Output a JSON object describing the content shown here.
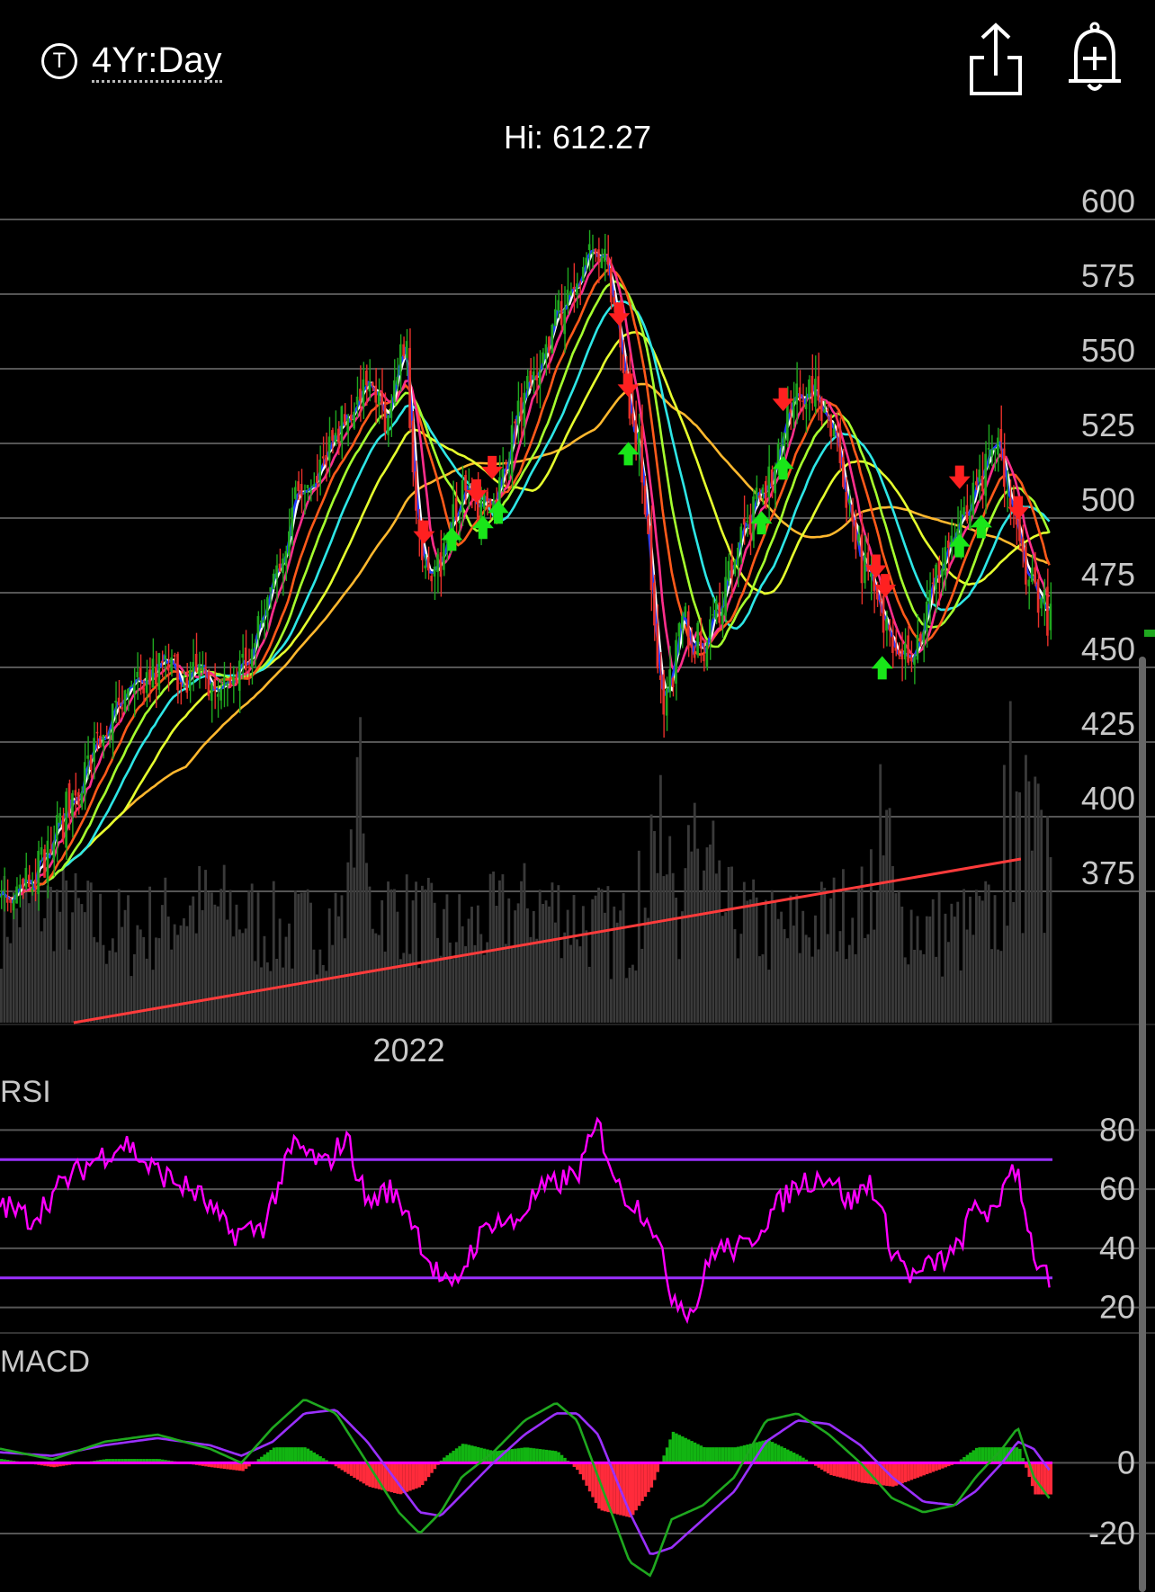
{
  "header": {
    "range_icon": "T",
    "range_label": "4Yr:Day",
    "share_icon": "share-icon",
    "alert_icon": "add-alert-bell-icon",
    "hi_label": "Hi: 612.27"
  },
  "colors": {
    "background": "#000000",
    "grid": "#555555",
    "up": "#1fa81f",
    "down": "#e8302a",
    "volume": "#3a3a3a",
    "trendline": "#ff3b3b",
    "rsi": "#ff00ff",
    "rsi_bands": "#9b30ff",
    "macd_line": "#1fa81f",
    "signal_line": "#9b30ff",
    "hist_up": "#12b512",
    "hist_down": "#ff2b3b"
  },
  "chart_data": [
    {
      "type": "candlestick",
      "title": "",
      "high_label": "Hi: 612.27",
      "y_ticks": [
        600,
        575,
        550,
        525,
        500,
        475,
        450,
        425,
        400,
        375
      ],
      "ylim": [
        360,
        612.27
      ],
      "x_tick_labels": [
        "2022"
      ],
      "x_tick_positions": [
        0.38
      ],
      "close_path": {
        "t": [
          0,
          0.04,
          0.1,
          0.15,
          0.18,
          0.21,
          0.24,
          0.28,
          0.32,
          0.345,
          0.37,
          0.385,
          0.4,
          0.42,
          0.44,
          0.465,
          0.49,
          0.52,
          0.54,
          0.56,
          0.575,
          0.59,
          0.61,
          0.63,
          0.65,
          0.67,
          0.7,
          0.73,
          0.76,
          0.79,
          0.82,
          0.84,
          0.87,
          0.9,
          0.92,
          0.95,
          0.97,
          1.0
        ],
        "close": [
          375,
          385,
          430,
          450,
          448,
          442,
          455,
          505,
          530,
          545,
          532,
          560,
          480,
          485,
          510,
          500,
          530,
          560,
          575,
          590,
          585,
          555,
          520,
          435,
          465,
          455,
          490,
          510,
          545,
          535,
          485,
          465,
          455,
          490,
          500,
          525,
          490,
          465
        ]
      },
      "moving_averages": [
        {
          "color": "#1f3bff",
          "smooth": 2
        },
        {
          "color": "#ffffff",
          "smooth": 3
        },
        {
          "color": "#ff2e8c",
          "smooth": 7
        },
        {
          "color": "#ff5a1a",
          "smooth": 14
        },
        {
          "color": "#a6ff2e",
          "smooth": 20
        },
        {
          "color": "#2ee6e6",
          "smooth": 28
        },
        {
          "color": "#e6ff2e",
          "smooth": 40
        },
        {
          "color": "#ffb82e",
          "smooth": 60
        }
      ],
      "buy_signals": [
        0.43,
        0.46,
        0.475,
        0.6,
        0.725,
        0.745,
        0.84,
        0.915,
        0.935
      ],
      "sell_signals": [
        0.405,
        0.455,
        0.47,
        0.59,
        0.6,
        0.745,
        0.835,
        0.845,
        0.915,
        0.97
      ],
      "volume": {
        "relative_range": [
          0.0,
          0.48
        ],
        "spikes": [
          0.34,
          0.63,
          0.84,
          0.97
        ]
      },
      "trendline": {
        "from": [
          0.07,
          0.0
        ],
        "to": [
          0.97,
          0.35
        ]
      }
    },
    {
      "type": "line",
      "title": "RSI",
      "y_ticks": [
        80,
        60,
        40,
        20
      ],
      "ylim": [
        12,
        88
      ],
      "bands": [
        70,
        30
      ],
      "series": [
        {
          "t": [
            0,
            0.03,
            0.06,
            0.09,
            0.12,
            0.14,
            0.16,
            0.19,
            0.22,
            0.25,
            0.28,
            0.31,
            0.33,
            0.35,
            0.37,
            0.39,
            0.41,
            0.43,
            0.45,
            0.47,
            0.49,
            0.51,
            0.53,
            0.55,
            0.57,
            0.59,
            0.62,
            0.64,
            0.66,
            0.68,
            0.71,
            0.73,
            0.76,
            0.79,
            0.81,
            0.83,
            0.85,
            0.87,
            0.89,
            0.91,
            0.93,
            0.95,
            0.96,
            0.97,
            0.985,
            1.0
          ],
          "value": [
            55,
            50,
            62,
            70,
            76,
            68,
            64,
            58,
            45,
            47,
            75,
            68,
            78,
            55,
            60,
            52,
            35,
            25,
            40,
            50,
            48,
            58,
            62,
            65,
            82,
            60,
            50,
            25,
            18,
            40,
            40,
            50,
            62,
            65,
            55,
            63,
            40,
            30,
            35,
            38,
            55,
            50,
            68,
            66,
            38,
            28
          ]
        }
      ]
    },
    {
      "type": "line",
      "title": "MACD",
      "y_ticks": [
        0,
        -20
      ],
      "ylim": [
        -34,
        22
      ],
      "series": [
        {
          "name": "",
          "t": [
            0,
            0.05,
            0.1,
            0.15,
            0.2,
            0.23,
            0.26,
            0.29,
            0.32,
            0.35,
            0.38,
            0.4,
            0.42,
            0.44,
            0.47,
            0.5,
            0.53,
            0.55,
            0.57,
            0.6,
            0.62,
            0.64,
            0.67,
            0.7,
            0.73,
            0.76,
            0.79,
            0.82,
            0.85,
            0.88,
            0.91,
            0.93,
            0.955,
            0.97,
            0.985,
            1.0
          ],
          "value": [
            4,
            1,
            6,
            8,
            4,
            0,
            10,
            18,
            14,
            0,
            -14,
            -20,
            -14,
            -4,
            3,
            12,
            17,
            12,
            -4,
            -28,
            -32,
            -16,
            -12,
            -4,
            12,
            14,
            8,
            0,
            -10,
            -14,
            -12,
            -4,
            4,
            10,
            -4,
            -10
          ]
        },
        {
          "name": "",
          "t": [
            0,
            0.05,
            0.1,
            0.15,
            0.2,
            0.23,
            0.26,
            0.29,
            0.32,
            0.35,
            0.38,
            0.4,
            0.42,
            0.44,
            0.47,
            0.5,
            0.53,
            0.55,
            0.57,
            0.6,
            0.62,
            0.64,
            0.67,
            0.7,
            0.73,
            0.76,
            0.79,
            0.82,
            0.85,
            0.88,
            0.91,
            0.93,
            0.955,
            0.97,
            0.985,
            1.0
          ],
          "value": [
            3,
            2,
            5,
            7,
            5,
            2,
            6,
            14,
            15,
            6,
            -6,
            -14,
            -15,
            -9,
            0,
            8,
            14,
            14,
            8,
            -14,
            -26,
            -24,
            -16,
            -8,
            6,
            12,
            11,
            5,
            -4,
            -11,
            -12,
            -8,
            0,
            6,
            4,
            -2
          ]
        }
      ]
    }
  ]
}
